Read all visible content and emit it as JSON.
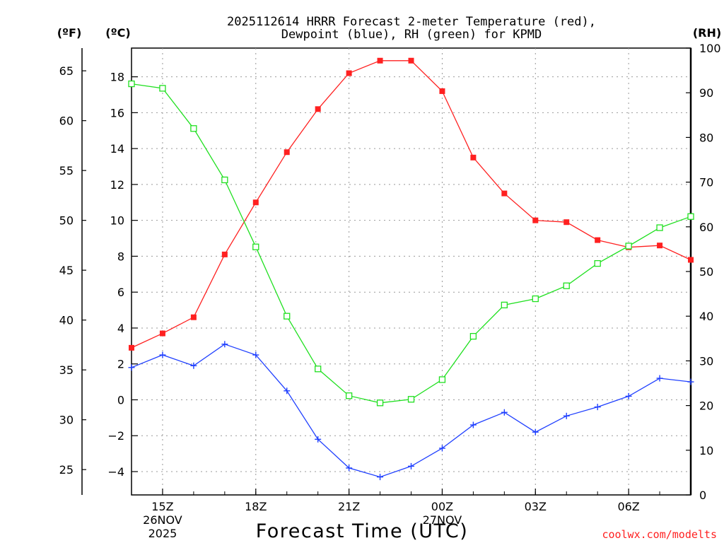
{
  "chart_data": {
    "type": "line",
    "title_line1": "2025112614 HRRR Forecast 2-meter Temperature (red),",
    "title_line2": "Dewpoint (blue), RH (green) for KPMD",
    "xlabel": "Forecast Time (UTC)",
    "credit": "coolwx.com/modelts",
    "left_unit_f": "(ºF)",
    "left_unit_c": "(ºC)",
    "right_unit": "(RH)",
    "x_hours": [
      14,
      15,
      16,
      17,
      18,
      19,
      20,
      21,
      22,
      23,
      24,
      25,
      26,
      27,
      28,
      29,
      30,
      31,
      32
    ],
    "xlim": [
      14,
      32
    ],
    "x_ticks": [
      {
        "hour": 15,
        "label": "15Z",
        "date": "26NOV",
        "year": "2025"
      },
      {
        "hour": 18,
        "label": "18Z",
        "date": "",
        "year": ""
      },
      {
        "hour": 21,
        "label": "21Z",
        "date": "",
        "year": ""
      },
      {
        "hour": 24,
        "label": "00Z",
        "date": "27NOV",
        "year": ""
      },
      {
        "hour": 27,
        "label": "03Z",
        "date": "",
        "year": ""
      },
      {
        "hour": 30,
        "label": "06Z",
        "date": "",
        "year": ""
      }
    ],
    "ylim_c": [
      -5.3,
      19.6
    ],
    "y_ticks_c": [
      -4,
      -2,
      0,
      2,
      4,
      6,
      8,
      10,
      12,
      14,
      16,
      18
    ],
    "y_ticks_f": [
      25,
      30,
      35,
      40,
      45,
      50,
      55,
      60,
      65
    ],
    "ylim_rh": [
      0,
      100
    ],
    "y_ticks_rh": [
      0,
      10,
      20,
      30,
      40,
      50,
      60,
      70,
      80,
      90,
      100
    ],
    "series": [
      {
        "name": "Temperature",
        "color": "#ff2020",
        "marker": "filled-square",
        "axis": "celsius",
        "values": [
          2.9,
          3.7,
          4.6,
          8.1,
          11.0,
          13.8,
          16.2,
          18.2,
          18.9,
          18.9,
          17.2,
          13.5,
          11.5,
          10.0,
          9.9,
          8.9,
          8.5,
          8.6,
          7.8
        ]
      },
      {
        "name": "Dewpoint",
        "color": "#2040ff",
        "marker": "plus",
        "axis": "celsius",
        "values": [
          1.8,
          2.5,
          1.9,
          3.1,
          2.5,
          0.5,
          -2.2,
          -3.8,
          -4.3,
          -3.7,
          -2.7,
          -1.4,
          -0.7,
          -1.8,
          -0.9,
          -0.4,
          0.2,
          1.2,
          1.0
        ]
      },
      {
        "name": "RH",
        "color": "#20e020",
        "marker": "open-square",
        "axis": "rh",
        "values": [
          92,
          91,
          82,
          70.5,
          55.5,
          40,
          28.2,
          22.2,
          20.6,
          21.4,
          25.8,
          35.5,
          42.5,
          43.9,
          46.8,
          51.8,
          55.7,
          59.8,
          62.3
        ]
      }
    ]
  }
}
